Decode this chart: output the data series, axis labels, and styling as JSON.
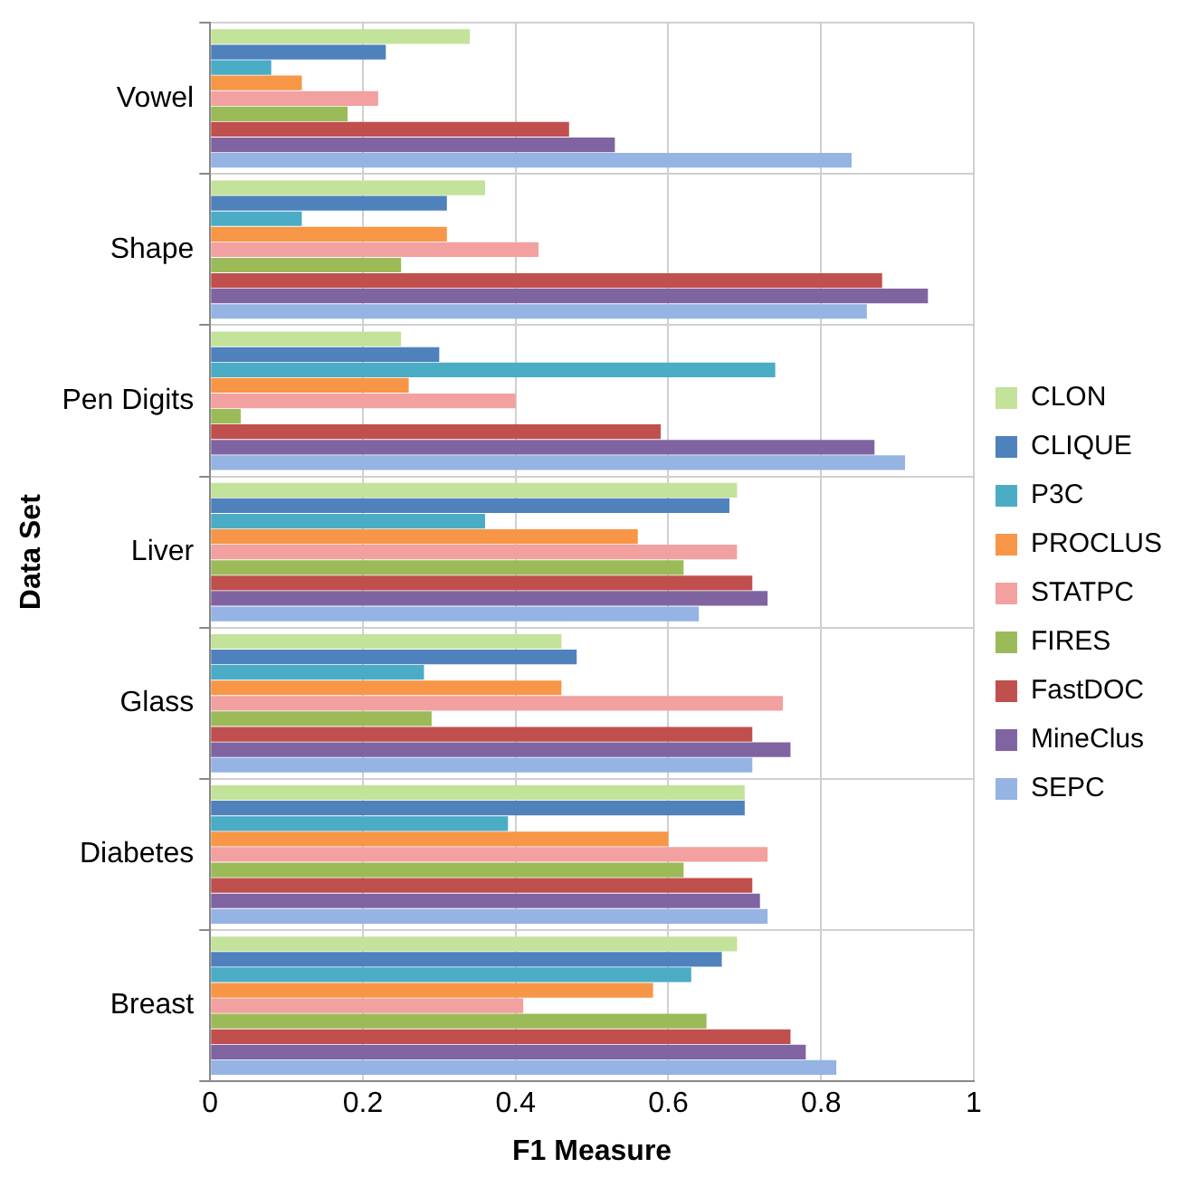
{
  "chart_data": {
    "type": "bar",
    "orientation": "horizontal",
    "xlabel": "F1 Measure",
    "ylabel": "Data Set",
    "categories": [
      "Vowel",
      "Shape",
      "Pen Digits",
      "Liver",
      "Glass",
      "Diabetes",
      "Breast"
    ],
    "series": [
      {
        "name": "CLON",
        "color": "#c3e29a",
        "values": [
          0.34,
          0.36,
          0.25,
          0.69,
          0.46,
          0.7,
          0.69
        ]
      },
      {
        "name": "CLIQUE",
        "color": "#4f81bd",
        "values": [
          0.23,
          0.31,
          0.3,
          0.68,
          0.48,
          0.7,
          0.67
        ]
      },
      {
        "name": "P3C",
        "color": "#4bacc6",
        "values": [
          0.08,
          0.12,
          0.74,
          0.36,
          0.28,
          0.39,
          0.63
        ]
      },
      {
        "name": "PROCLUS",
        "color": "#f79646",
        "values": [
          0.12,
          0.31,
          0.26,
          0.56,
          0.46,
          0.6,
          0.58
        ]
      },
      {
        "name": "STATPC",
        "color": "#f2a0a0",
        "values": [
          0.22,
          0.43,
          0.4,
          0.69,
          0.75,
          0.73,
          0.41
        ]
      },
      {
        "name": "FIRES",
        "color": "#9bbb59",
        "values": [
          0.18,
          0.25,
          0.04,
          0.62,
          0.29,
          0.62,
          0.65
        ]
      },
      {
        "name": "FastDOC",
        "color": "#c0504d",
        "values": [
          0.47,
          0.88,
          0.59,
          0.71,
          0.71,
          0.71,
          0.76
        ]
      },
      {
        "name": "MineClus",
        "color": "#8064a2",
        "values": [
          0.53,
          0.94,
          0.87,
          0.73,
          0.76,
          0.72,
          0.78
        ]
      },
      {
        "name": "SEPC",
        "color": "#95b3e3",
        "values": [
          0.84,
          0.86,
          0.91,
          0.64,
          0.71,
          0.73,
          0.82
        ]
      }
    ],
    "xlim": [
      0,
      1
    ],
    "xticks": [
      0,
      0.2,
      0.4,
      0.6,
      0.8,
      1
    ],
    "grid": true,
    "legend": "right"
  }
}
